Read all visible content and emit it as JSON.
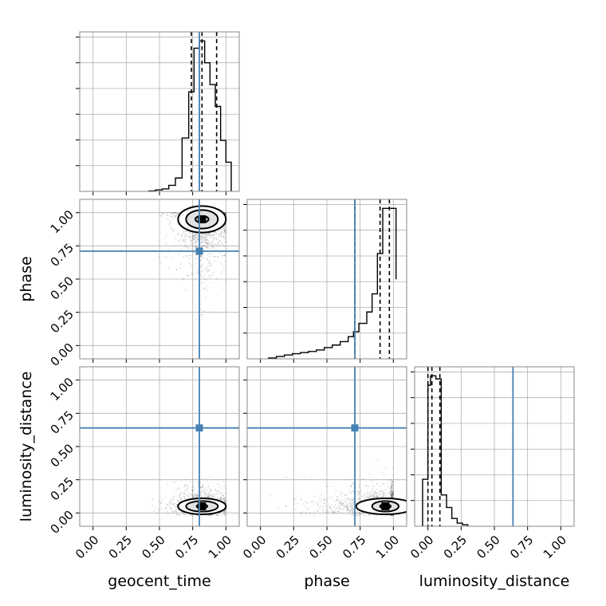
{
  "chart_data": {
    "type": "corner",
    "parameters": [
      "geocent_time",
      "phase",
      "luminosity_distance"
    ],
    "axis_labels": {
      "geocent_time": "geocent_time",
      "phase": "phase",
      "luminosity_distance": "luminosity_distance"
    },
    "axis_range": [
      -0.1,
      1.1
    ],
    "tick_values": [
      0.0,
      0.25,
      0.5,
      0.75,
      1.0
    ],
    "tick_labels": [
      "0.00",
      "0.25",
      "0.50",
      "0.75",
      "1.00"
    ],
    "grid": true,
    "truths": {
      "geocent_time": 0.8,
      "phase": 0.71,
      "luminosity_distance": 0.64
    },
    "quantiles": {
      "geocent_time": [
        0.74,
        0.82,
        0.93
      ],
      "phase": [
        0.71,
        0.9,
        0.97
      ],
      "luminosity_distance": [
        0.0,
        0.03,
        0.09
      ]
    },
    "histograms": {
      "geocent_time": {
        "bin_edges": [
          0.42,
          0.47,
          0.52,
          0.57,
          0.62,
          0.67,
          0.72,
          0.76,
          0.8,
          0.84,
          0.88,
          0.92,
          0.96,
          1.0,
          1.04
        ],
        "counts": [
          0.2,
          0.6,
          1,
          2.5,
          5.5,
          22,
          41,
          59,
          62,
          53,
          44,
          35,
          21,
          12
        ]
      },
      "phase": {
        "bin_edges": [
          0.06,
          0.12,
          0.18,
          0.24,
          0.3,
          0.36,
          0.42,
          0.48,
          0.54,
          0.6,
          0.66,
          0.7,
          0.74,
          0.8,
          0.84,
          0.88,
          0.92,
          0.96,
          1.02
        ],
        "counts": [
          0.4,
          1.1,
          1.8,
          2.4,
          2.9,
          3.4,
          4.1,
          5.2,
          6.4,
          8.0,
          10.3,
          12.6,
          16.5,
          21.8,
          30.2,
          49,
          70,
          70,
          37
        ]
      },
      "luminosity_distance": {
        "bin_edges": [
          -0.04,
          0.0,
          0.02,
          0.06,
          0.1,
          0.14,
          0.18,
          0.22,
          0.26,
          0.3
        ],
        "counts": [
          30,
          90,
          96,
          94,
          20,
          12,
          5,
          2,
          1
        ]
      }
    },
    "panels_2d": [
      {
        "x_param": "geocent_time",
        "y_param": "phase",
        "peak": [
          0.82,
          0.95
        ],
        "cloud_spread": [
          0.09,
          0.19
        ],
        "x_clip": [
          0.4,
          1.0
        ],
        "y_clip": [
          -0.02,
          1.0
        ],
        "contour_widths": [
          [
            0.05,
            0.025
          ],
          [
            0.12,
            0.07
          ],
          [
            0.18,
            0.1
          ]
        ]
      },
      {
        "x_param": "geocent_time",
        "y_param": "luminosity_distance",
        "peak": [
          0.82,
          0.05
        ],
        "cloud_spread": [
          0.1,
          0.06
        ],
        "x_clip": [
          0.4,
          1.0
        ],
        "y_clip": [
          -0.02,
          0.42
        ],
        "contour_widths": [
          [
            0.04,
            0.015
          ],
          [
            0.12,
            0.04
          ],
          [
            0.18,
            0.06
          ]
        ]
      },
      {
        "x_param": "phase",
        "y_param": "luminosity_distance",
        "peak": [
          0.94,
          0.05
        ],
        "cloud_spread": [
          0.24,
          0.07
        ],
        "x_clip": [
          0.0,
          1.0
        ],
        "y_clip": [
          -0.02,
          0.4
        ],
        "contour_widths": [
          [
            0.04,
            0.015
          ],
          [
            0.1,
            0.04
          ],
          [
            0.22,
            0.06
          ]
        ]
      }
    ],
    "colors": {
      "truth": "#4682b4",
      "hist": "#000000",
      "quantile": "#000000",
      "grid": "#b0b0b0",
      "frame": "#888888",
      "scatter": "#000000",
      "contour_fill": [
        "#ffffff",
        "#e2e2e2",
        "#bcbcbc",
        "#8a8a8a"
      ]
    }
  }
}
